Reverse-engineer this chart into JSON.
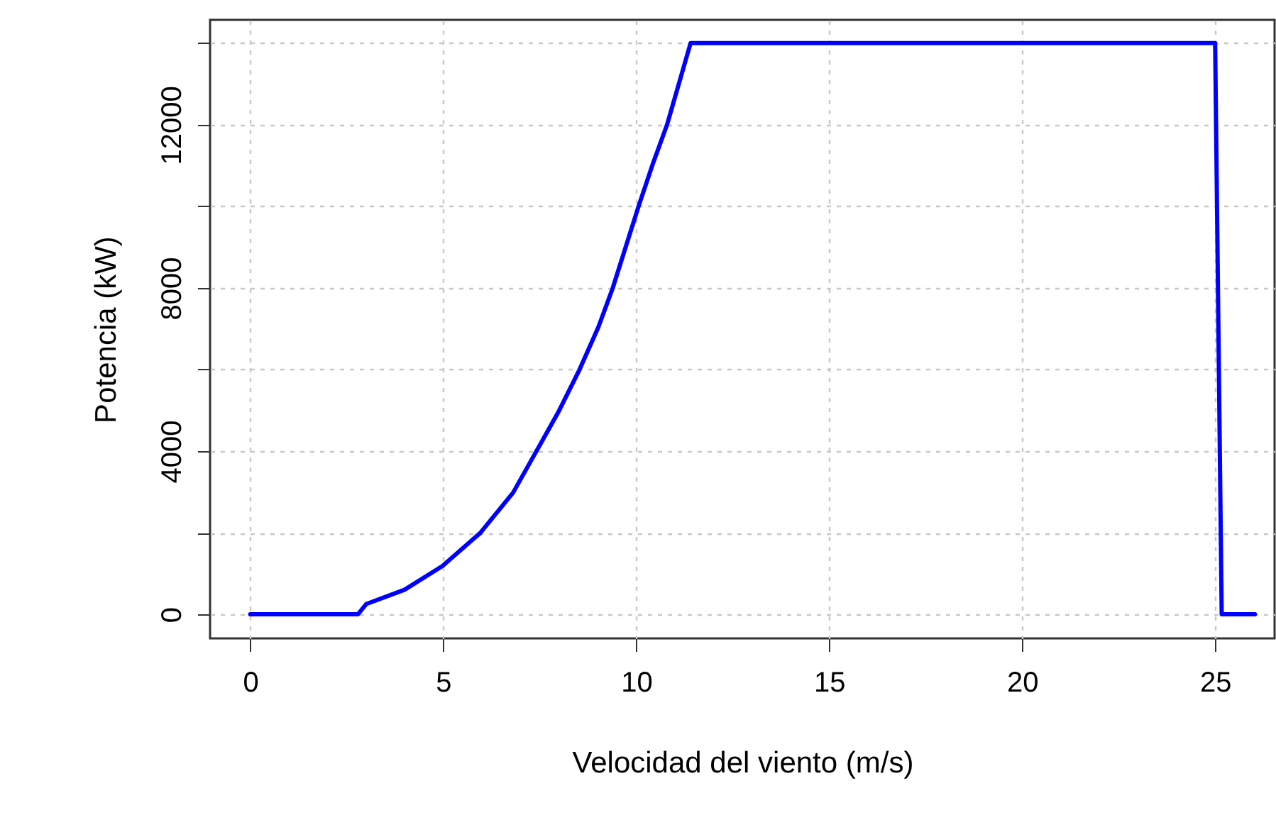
{
  "chart_data": {
    "type": "line",
    "xlabel": "Velocidad del viento (m/s)",
    "ylabel": "Potencia (kW)",
    "x": [
      0,
      2.79,
      3.01,
      4.0,
      4.98,
      5.96,
      6.81,
      7.43,
      7.98,
      8.53,
      9.02,
      9.39,
      10.06,
      10.43,
      10.8,
      11.41,
      25.0,
      25.17,
      26.03
    ],
    "series": [
      {
        "color": "#0000ff",
        "values": [
          0,
          0,
          254,
          603,
          1183,
          1994,
          2980,
          4024,
          4950,
          5994,
          7037,
          7990,
          9994,
          11037,
          12000,
          14000,
          14000,
          0,
          0
        ]
      }
    ],
    "xlim": [
      -1.04,
      26.54
    ],
    "ylim": [
      -590,
      14570
    ],
    "xticks": [
      0,
      5,
      10,
      15,
      20,
      25
    ],
    "yticks": [
      0,
      {
        "value": 2000,
        "label": null
      },
      4000,
      {
        "value": 6000,
        "label": null
      },
      8000,
      {
        "value": 10000,
        "label": null
      },
      12000,
      {
        "value": 14000,
        "label": null
      }
    ],
    "grid": true,
    "marker": "none",
    "line_style": "solid"
  }
}
